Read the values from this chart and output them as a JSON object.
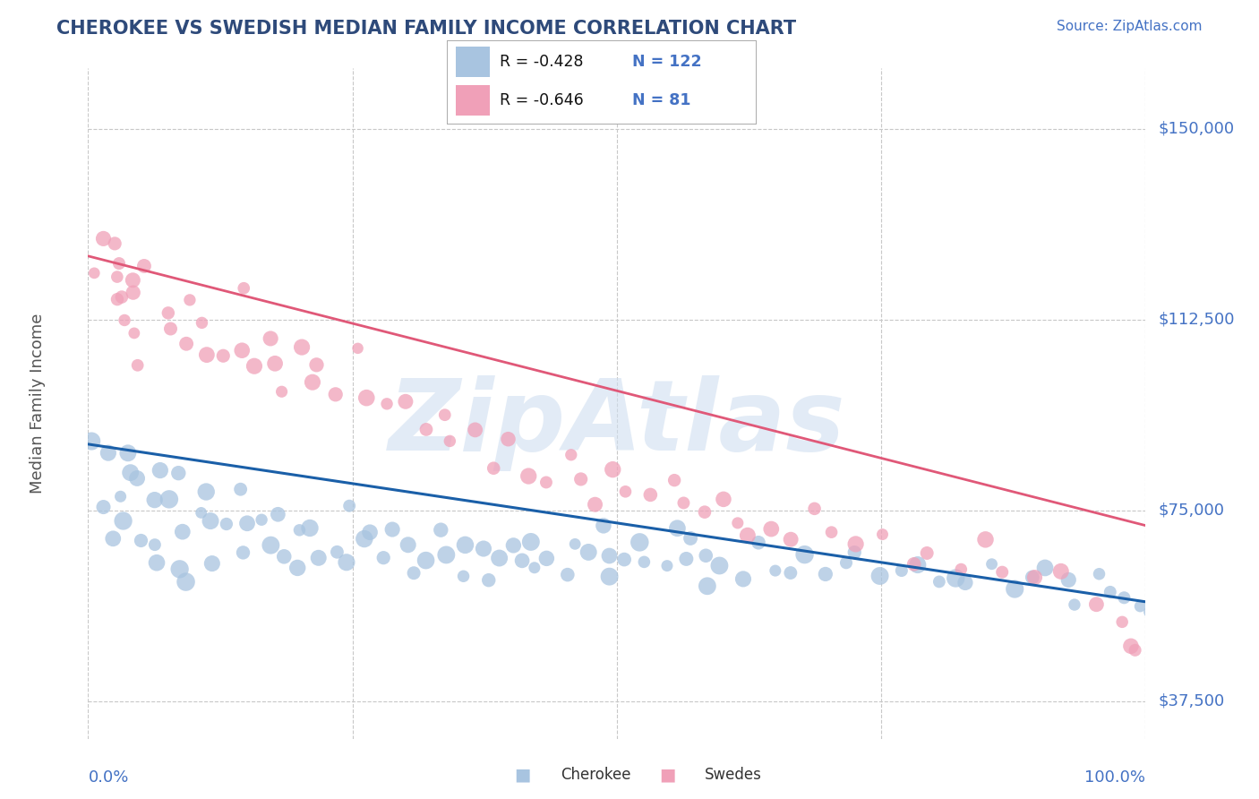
{
  "title": "CHEROKEE VS SWEDISH MEDIAN FAMILY INCOME CORRELATION CHART",
  "source_text": "Source: ZipAtlas.com",
  "ylabel": "Median Family Income",
  "xlim": [
    0,
    100
  ],
  "ylim": [
    30000,
    162000
  ],
  "yticks": [
    37500,
    75000,
    112500,
    150000
  ],
  "ytick_labels": [
    "$37,500",
    "$75,000",
    "$112,500",
    "$150,000"
  ],
  "xtick_left_label": "0.0%",
  "xtick_right_label": "100.0%",
  "cherokee_color": "#a8c4e0",
  "swedes_color": "#f0a0b8",
  "cherokee_line_color": "#1a5fa8",
  "swedes_line_color": "#e05878",
  "background_color": "#ffffff",
  "grid_color": "#c8c8c8",
  "title_color": "#2e4a7a",
  "axis_label_color": "#4472c4",
  "watermark_color": "#d0dff0",
  "watermark_text": "ZipAtlas",
  "legend_r_cherokee": "-0.428",
  "legend_n_cherokee": "122",
  "legend_r_swedes": "-0.646",
  "legend_n_swedes": "81",
  "legend_label_cherokee": "Cherokee",
  "legend_label_swedes": "Swedes",
  "cherokee_trend_x": [
    0,
    100
  ],
  "cherokee_trend_y": [
    88000,
    57000
  ],
  "swedes_trend_x": [
    0,
    100
  ],
  "swedes_trend_y": [
    125000,
    72000
  ],
  "cherokee_points_x": [
    1,
    1,
    2,
    2,
    3,
    3,
    4,
    4,
    5,
    5,
    6,
    6,
    7,
    7,
    8,
    8,
    9,
    9,
    10,
    10,
    11,
    11,
    12,
    13,
    14,
    15,
    15,
    16,
    17,
    18,
    19,
    20,
    20,
    21,
    22,
    23,
    24,
    25,
    26,
    27,
    28,
    29,
    30,
    31,
    32,
    33,
    34,
    35,
    36,
    37,
    38,
    39,
    40,
    41,
    42,
    43,
    44,
    45,
    46,
    47,
    48,
    49,
    50,
    51,
    52,
    53,
    54,
    55,
    56,
    57,
    58,
    59,
    60,
    62,
    63,
    65,
    67,
    68,
    70,
    72,
    73,
    75,
    77,
    78,
    80,
    82,
    83,
    85,
    87,
    89,
    90,
    92,
    94,
    95,
    97,
    98,
    99,
    100
  ],
  "cherokee_points_y": [
    90000,
    75000,
    88000,
    70000,
    85000,
    78000,
    82000,
    72000,
    80000,
    68000,
    79000,
    65000,
    83000,
    70000,
    77000,
    63000,
    81000,
    69000,
    76000,
    62000,
    78000,
    66000,
    74000,
    72000,
    68000,
    78000,
    71000,
    75000,
    68000,
    73000,
    64000,
    72000,
    65000,
    70000,
    64000,
    68000,
    65000,
    75000,
    68000,
    72000,
    65000,
    70000,
    68000,
    64000,
    67000,
    72000,
    65000,
    70000,
    64000,
    68000,
    63000,
    67000,
    70000,
    65000,
    68000,
    64000,
    67000,
    63000,
    68000,
    65000,
    70000,
    63000,
    68000,
    64000,
    67000,
    65000,
    63000,
    70000,
    65000,
    68000,
    62000,
    67000,
    65000,
    63000,
    67000,
    65000,
    62000,
    68000,
    63000,
    65000,
    68000,
    62000,
    63000,
    65000,
    60000,
    63000,
    62000,
    65000,
    60000,
    63000,
    62000,
    60000,
    58000,
    63000,
    60000,
    58000,
    57000,
    55000
  ],
  "swedes_points_x": [
    1,
    1,
    2,
    2,
    2,
    3,
    3,
    3,
    4,
    4,
    5,
    5,
    6,
    7,
    8,
    9,
    10,
    11,
    12,
    13,
    14,
    15,
    16,
    17,
    18,
    19,
    20,
    21,
    22,
    23,
    25,
    27,
    28,
    30,
    32,
    33,
    35,
    37,
    38,
    40,
    42,
    43,
    45,
    47,
    48,
    50,
    51,
    53,
    55,
    57,
    58,
    60,
    62,
    63,
    65,
    67,
    68,
    70,
    73,
    75,
    78,
    80,
    82,
    85,
    87,
    90,
    92,
    95,
    97,
    98,
    99
  ],
  "swedes_points_y": [
    130000,
    120000,
    128000,
    122000,
    115000,
    125000,
    118000,
    112000,
    120000,
    108000,
    118000,
    105000,
    122000,
    115000,
    112000,
    108000,
    117000,
    110000,
    107000,
    104000,
    118000,
    108000,
    105000,
    102000,
    110000,
    100000,
    108000,
    103000,
    100000,
    97000,
    105000,
    98000,
    97000,
    95000,
    92000,
    93000,
    90000,
    92000,
    85000,
    88000,
    83000,
    82000,
    87000,
    82000,
    78000,
    84000,
    78000,
    77000,
    82000,
    76000,
    73000,
    77000,
    73000,
    72000,
    70000,
    68000,
    77000,
    72000,
    67000,
    70000,
    65000,
    68000,
    65000,
    69000,
    62000,
    60000,
    62000,
    57000,
    52000,
    50000,
    47000
  ]
}
